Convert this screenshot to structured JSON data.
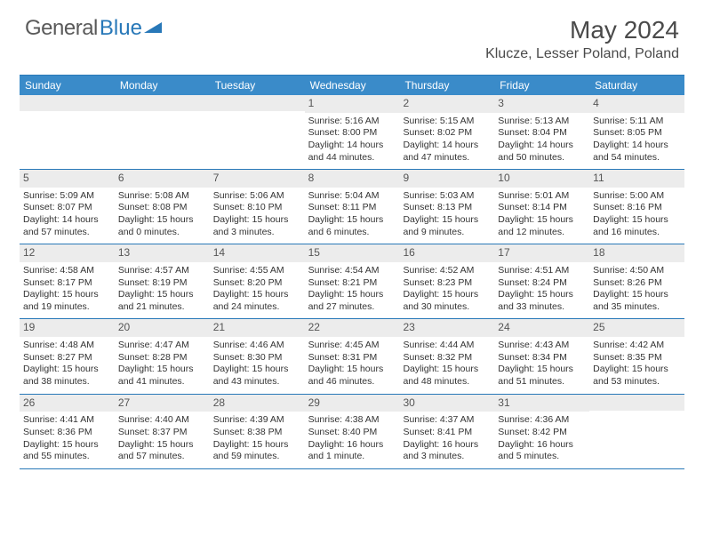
{
  "logo": {
    "text1": "General",
    "text2": "Blue"
  },
  "title": "May 2024",
  "location": "Klucze, Lesser Poland, Poland",
  "colors": {
    "header_bg": "#3a8bc9",
    "border": "#2878b8",
    "daynum_bg": "#ececec",
    "text": "#333333"
  },
  "dow": [
    "Sunday",
    "Monday",
    "Tuesday",
    "Wednesday",
    "Thursday",
    "Friday",
    "Saturday"
  ],
  "weeks": [
    [
      {
        "n": "",
        "sr": "",
        "ss": "",
        "dl": ""
      },
      {
        "n": "",
        "sr": "",
        "ss": "",
        "dl": ""
      },
      {
        "n": "",
        "sr": "",
        "ss": "",
        "dl": ""
      },
      {
        "n": "1",
        "sr": "Sunrise: 5:16 AM",
        "ss": "Sunset: 8:00 PM",
        "dl": "Daylight: 14 hours and 44 minutes."
      },
      {
        "n": "2",
        "sr": "Sunrise: 5:15 AM",
        "ss": "Sunset: 8:02 PM",
        "dl": "Daylight: 14 hours and 47 minutes."
      },
      {
        "n": "3",
        "sr": "Sunrise: 5:13 AM",
        "ss": "Sunset: 8:04 PM",
        "dl": "Daylight: 14 hours and 50 minutes."
      },
      {
        "n": "4",
        "sr": "Sunrise: 5:11 AM",
        "ss": "Sunset: 8:05 PM",
        "dl": "Daylight: 14 hours and 54 minutes."
      }
    ],
    [
      {
        "n": "5",
        "sr": "Sunrise: 5:09 AM",
        "ss": "Sunset: 8:07 PM",
        "dl": "Daylight: 14 hours and 57 minutes."
      },
      {
        "n": "6",
        "sr": "Sunrise: 5:08 AM",
        "ss": "Sunset: 8:08 PM",
        "dl": "Daylight: 15 hours and 0 minutes."
      },
      {
        "n": "7",
        "sr": "Sunrise: 5:06 AM",
        "ss": "Sunset: 8:10 PM",
        "dl": "Daylight: 15 hours and 3 minutes."
      },
      {
        "n": "8",
        "sr": "Sunrise: 5:04 AM",
        "ss": "Sunset: 8:11 PM",
        "dl": "Daylight: 15 hours and 6 minutes."
      },
      {
        "n": "9",
        "sr": "Sunrise: 5:03 AM",
        "ss": "Sunset: 8:13 PM",
        "dl": "Daylight: 15 hours and 9 minutes."
      },
      {
        "n": "10",
        "sr": "Sunrise: 5:01 AM",
        "ss": "Sunset: 8:14 PM",
        "dl": "Daylight: 15 hours and 12 minutes."
      },
      {
        "n": "11",
        "sr": "Sunrise: 5:00 AM",
        "ss": "Sunset: 8:16 PM",
        "dl": "Daylight: 15 hours and 16 minutes."
      }
    ],
    [
      {
        "n": "12",
        "sr": "Sunrise: 4:58 AM",
        "ss": "Sunset: 8:17 PM",
        "dl": "Daylight: 15 hours and 19 minutes."
      },
      {
        "n": "13",
        "sr": "Sunrise: 4:57 AM",
        "ss": "Sunset: 8:19 PM",
        "dl": "Daylight: 15 hours and 21 minutes."
      },
      {
        "n": "14",
        "sr": "Sunrise: 4:55 AM",
        "ss": "Sunset: 8:20 PM",
        "dl": "Daylight: 15 hours and 24 minutes."
      },
      {
        "n": "15",
        "sr": "Sunrise: 4:54 AM",
        "ss": "Sunset: 8:21 PM",
        "dl": "Daylight: 15 hours and 27 minutes."
      },
      {
        "n": "16",
        "sr": "Sunrise: 4:52 AM",
        "ss": "Sunset: 8:23 PM",
        "dl": "Daylight: 15 hours and 30 minutes."
      },
      {
        "n": "17",
        "sr": "Sunrise: 4:51 AM",
        "ss": "Sunset: 8:24 PM",
        "dl": "Daylight: 15 hours and 33 minutes."
      },
      {
        "n": "18",
        "sr": "Sunrise: 4:50 AM",
        "ss": "Sunset: 8:26 PM",
        "dl": "Daylight: 15 hours and 35 minutes."
      }
    ],
    [
      {
        "n": "19",
        "sr": "Sunrise: 4:48 AM",
        "ss": "Sunset: 8:27 PM",
        "dl": "Daylight: 15 hours and 38 minutes."
      },
      {
        "n": "20",
        "sr": "Sunrise: 4:47 AM",
        "ss": "Sunset: 8:28 PM",
        "dl": "Daylight: 15 hours and 41 minutes."
      },
      {
        "n": "21",
        "sr": "Sunrise: 4:46 AM",
        "ss": "Sunset: 8:30 PM",
        "dl": "Daylight: 15 hours and 43 minutes."
      },
      {
        "n": "22",
        "sr": "Sunrise: 4:45 AM",
        "ss": "Sunset: 8:31 PM",
        "dl": "Daylight: 15 hours and 46 minutes."
      },
      {
        "n": "23",
        "sr": "Sunrise: 4:44 AM",
        "ss": "Sunset: 8:32 PM",
        "dl": "Daylight: 15 hours and 48 minutes."
      },
      {
        "n": "24",
        "sr": "Sunrise: 4:43 AM",
        "ss": "Sunset: 8:34 PM",
        "dl": "Daylight: 15 hours and 51 minutes."
      },
      {
        "n": "25",
        "sr": "Sunrise: 4:42 AM",
        "ss": "Sunset: 8:35 PM",
        "dl": "Daylight: 15 hours and 53 minutes."
      }
    ],
    [
      {
        "n": "26",
        "sr": "Sunrise: 4:41 AM",
        "ss": "Sunset: 8:36 PM",
        "dl": "Daylight: 15 hours and 55 minutes."
      },
      {
        "n": "27",
        "sr": "Sunrise: 4:40 AM",
        "ss": "Sunset: 8:37 PM",
        "dl": "Daylight: 15 hours and 57 minutes."
      },
      {
        "n": "28",
        "sr": "Sunrise: 4:39 AM",
        "ss": "Sunset: 8:38 PM",
        "dl": "Daylight: 15 hours and 59 minutes."
      },
      {
        "n": "29",
        "sr": "Sunrise: 4:38 AM",
        "ss": "Sunset: 8:40 PM",
        "dl": "Daylight: 16 hours and 1 minute."
      },
      {
        "n": "30",
        "sr": "Sunrise: 4:37 AM",
        "ss": "Sunset: 8:41 PM",
        "dl": "Daylight: 16 hours and 3 minutes."
      },
      {
        "n": "31",
        "sr": "Sunrise: 4:36 AM",
        "ss": "Sunset: 8:42 PM",
        "dl": "Daylight: 16 hours and 5 minutes."
      },
      {
        "n": "",
        "sr": "",
        "ss": "",
        "dl": ""
      }
    ]
  ]
}
